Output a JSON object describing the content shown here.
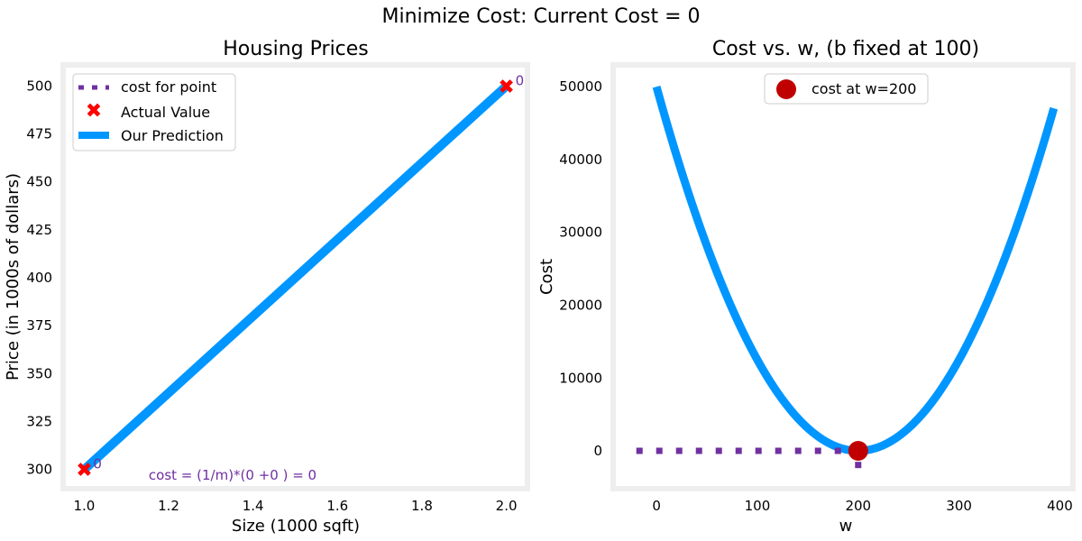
{
  "suptitle": "Minimize Cost: Current Cost = 0",
  "colors": {
    "prediction": "#0096ff",
    "actual": "#ff0000",
    "cost_point": "#7030a0",
    "cost_marker": "#c00000",
    "frame": "#eeeeee"
  },
  "chart_data": [
    {
      "type": "line",
      "title": "Housing Prices",
      "xlabel": "Size (1000 sqft)",
      "ylabel": "Price (in 1000s of dollars)",
      "xlim": [
        0.95,
        2.05
      ],
      "ylim": [
        290,
        511
      ],
      "xticks": [
        1.0,
        1.2,
        1.4,
        1.6,
        1.8,
        2.0
      ],
      "xtick_labels": [
        "1.0",
        "1.2",
        "1.4",
        "1.6",
        "1.8",
        "2.0"
      ],
      "yticks": [
        300,
        325,
        350,
        375,
        400,
        425,
        450,
        475,
        500
      ],
      "ytick_labels": [
        "300",
        "325",
        "350",
        "375",
        "400",
        "425",
        "450",
        "475",
        "500"
      ],
      "grid": false,
      "legend_position": "top-left",
      "legend": [
        "cost for point",
        "Actual Value",
        "Our Prediction"
      ],
      "actual": {
        "x": [
          1.0,
          2.0
        ],
        "y": [
          300,
          500
        ],
        "labels": [
          "0",
          "0"
        ]
      },
      "prediction": {
        "x": [
          1.0,
          2.0
        ],
        "y": [
          300,
          500
        ]
      },
      "annotation": "cost = (1/m)*(0 +0 ) = 0"
    },
    {
      "type": "line",
      "title": "Cost vs. w, (b fixed at 100)",
      "xlabel": "w",
      "ylabel": "Cost",
      "xlim": [
        -43,
        413
      ],
      "ylim": [
        -5200,
        53000
      ],
      "xticks": [
        0,
        100,
        200,
        300,
        400
      ],
      "xtick_labels": [
        "0",
        "100",
        "200",
        "300",
        "400"
      ],
      "yticks": [
        0,
        10000,
        20000,
        30000,
        40000,
        50000
      ],
      "ytick_labels": [
        "0",
        "10000",
        "20000",
        "30000",
        "40000",
        "50000"
      ],
      "grid": false,
      "legend_position": "top-center",
      "legend": [
        "cost at w=200"
      ],
      "curve": {
        "w_range": [
          0,
          395
        ],
        "formula": "1.25*(w-200)^2"
      },
      "current_point": {
        "w": 200,
        "cost": 0
      },
      "dotted_horizontal": {
        "w": [
          -20,
          200
        ],
        "cost": 0
      },
      "dotted_vertical": {
        "w": 200,
        "cost": [
          0,
          -2000
        ]
      }
    }
  ]
}
